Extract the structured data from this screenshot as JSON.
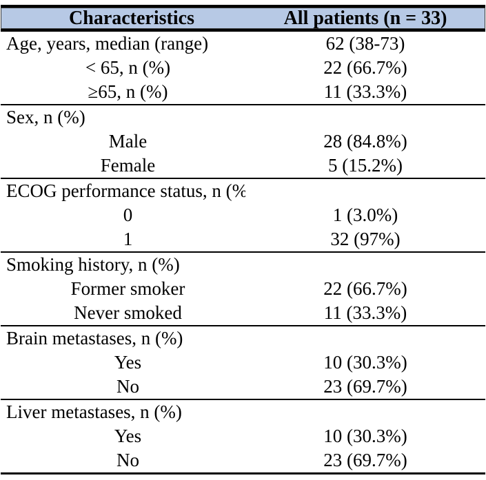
{
  "table": {
    "header": {
      "characteristics": "Characteristics",
      "all_patients": "All patients (n = 33)"
    },
    "colors": {
      "header_bg": "#b7c9e5",
      "border": "#000000",
      "text": "#000000"
    },
    "rows": [
      {
        "label": "Age, years, median (range)",
        "value": "62 (38-73)",
        "indent": false,
        "section_start": false
      },
      {
        "label": "< 65, n (%)",
        "value": "22 (66.7%)",
        "indent": true,
        "section_start": false
      },
      {
        "label": "≥65, n (%)",
        "value": "11 (33.3%)",
        "indent": true,
        "section_start": false
      },
      {
        "label": "Sex, n (%)",
        "value": "",
        "indent": false,
        "section_start": true
      },
      {
        "label": "Male",
        "value": "28 (84.8%)",
        "indent": true,
        "section_start": false
      },
      {
        "label": "Female",
        "value": "5 (15.2%)",
        "indent": true,
        "section_start": false
      },
      {
        "label": "ECOG performance status, n (%)",
        "value": "",
        "indent": false,
        "section_start": true
      },
      {
        "label": "0",
        "value": "1 (3.0%)",
        "indent": true,
        "section_start": false
      },
      {
        "label": "1",
        "value": "32 (97%)",
        "indent": true,
        "section_start": false
      },
      {
        "label": "Smoking history, n (%)",
        "value": "",
        "indent": false,
        "section_start": true
      },
      {
        "label": "Former smoker",
        "value": "22 (66.7%)",
        "indent": true,
        "section_start": false
      },
      {
        "label": "Never smoked",
        "value": "11 (33.3%)",
        "indent": true,
        "section_start": false
      },
      {
        "label": "Brain metastases, n (%)",
        "value": "",
        "indent": false,
        "section_start": true
      },
      {
        "label": "Yes",
        "value": "10 (30.3%)",
        "indent": true,
        "section_start": false
      },
      {
        "label": "No",
        "value": "23 (69.7%)",
        "indent": true,
        "section_start": false
      },
      {
        "label": "Liver metastases, n (%)",
        "value": "",
        "indent": false,
        "section_start": true
      },
      {
        "label": "Yes",
        "value": "10 (30.3%)",
        "indent": true,
        "section_start": false
      },
      {
        "label": "No",
        "value": "23 (69.7%)",
        "indent": true,
        "section_start": false
      }
    ]
  }
}
